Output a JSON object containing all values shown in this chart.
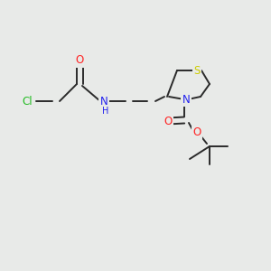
{
  "background_color": "#e8eae8",
  "figsize": [
    3.0,
    3.0
  ],
  "dpi": 100,
  "bond_color": "#2a2a2a",
  "bond_lw": 1.4,
  "atom_bg": "#e8eae8",
  "colors": {
    "Cl": "#22bb22",
    "O": "#ff2222",
    "N": "#2222ee",
    "S": "#cccc00",
    "C": "#2a2a2a"
  }
}
